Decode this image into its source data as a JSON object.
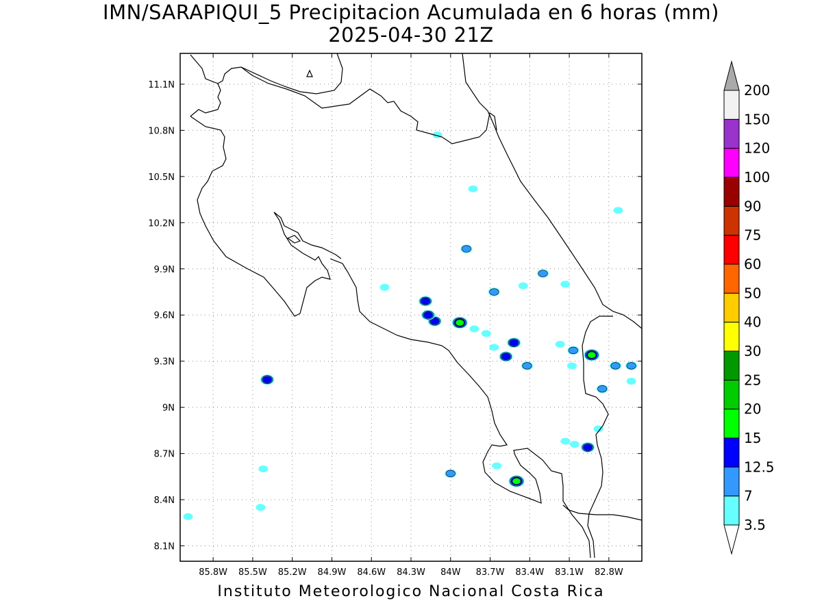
{
  "title": {
    "line1": "IMN/SARAPIQUI_5 Precipitacion Acumulada en 6 horas (mm)",
    "line2": "2025-04-30 21Z"
  },
  "credit": "Instituto Meteorologico Nacional Costa Rica",
  "map": {
    "lon_range": [
      -86.05,
      -82.55
    ],
    "lat_range": [
      8.0,
      11.3
    ],
    "lon_ticks": [
      "85.8W",
      "85.5W",
      "85.2W",
      "84.9W",
      "84.6W",
      "84.3W",
      "84W",
      "83.7W",
      "83.4W",
      "83.1W",
      "82.8W"
    ],
    "lat_ticks": [
      "8.1N",
      "8.4N",
      "8.7N",
      "9N",
      "9.3N",
      "9.6N",
      "9.9N",
      "10.2N",
      "10.5N",
      "10.8N",
      "11.1N"
    ],
    "grid": "dotted"
  },
  "colorbar": {
    "levels": [
      "3.5",
      "7",
      "12.5",
      "15",
      "20",
      "25",
      "30",
      "40",
      "50",
      "60",
      "75",
      "90",
      "100",
      "120",
      "150",
      "200"
    ],
    "colors": [
      "#66ffff",
      "#3399ff",
      "#0000ff",
      "#00ff00",
      "#00cc00",
      "#009900",
      "#ffff00",
      "#ffcc00",
      "#ff6600",
      "#ff0000",
      "#cc3300",
      "#990000",
      "#ff00ff",
      "#9933cc",
      "#f2f2f2",
      "#aaaaaa"
    ]
  },
  "precip_cells": [
    {
      "lon": -84.12,
      "lat": 9.56,
      "level": 2
    },
    {
      "lon": -83.93,
      "lat": 9.55,
      "level": 3
    },
    {
      "lon": -83.88,
      "lat": 10.03,
      "level": 1
    },
    {
      "lon": -84.19,
      "lat": 9.69,
      "level": 2
    },
    {
      "lon": -84.17,
      "lat": 9.6,
      "level": 2
    },
    {
      "lon": -83.3,
      "lat": 9.87,
      "level": 1
    },
    {
      "lon": -83.67,
      "lat": 9.75,
      "level": 1
    },
    {
      "lon": -83.52,
      "lat": 9.42,
      "level": 2
    },
    {
      "lon": -83.58,
      "lat": 9.33,
      "level": 2
    },
    {
      "lon": -82.93,
      "lat": 9.34,
      "level": 3
    },
    {
      "lon": -83.5,
      "lat": 8.52,
      "level": 3
    },
    {
      "lon": -82.96,
      "lat": 8.74,
      "level": 2
    },
    {
      "lon": -85.39,
      "lat": 9.18,
      "level": 2
    },
    {
      "lon": -84.5,
      "lat": 9.78,
      "level": 0
    },
    {
      "lon": -83.83,
      "lat": 10.42,
      "level": 0
    },
    {
      "lon": -82.73,
      "lat": 10.28,
      "level": 0
    },
    {
      "lon": -83.42,
      "lat": 9.27,
      "level": 1
    },
    {
      "lon": -82.75,
      "lat": 9.27,
      "level": 1
    },
    {
      "lon": -82.63,
      "lat": 9.27,
      "level": 1
    },
    {
      "lon": -82.85,
      "lat": 9.12,
      "level": 1
    },
    {
      "lon": -83.07,
      "lat": 9.37,
      "level": 1
    },
    {
      "lon": -84.0,
      "lat": 8.57,
      "level": 1
    },
    {
      "lon": -83.65,
      "lat": 8.62,
      "level": 0
    },
    {
      "lon": -85.42,
      "lat": 8.6,
      "level": 0
    },
    {
      "lon": -85.44,
      "lat": 8.35,
      "level": 0
    },
    {
      "lon": -83.13,
      "lat": 9.8,
      "level": 0
    },
    {
      "lon": -83.45,
      "lat": 9.79,
      "level": 0
    },
    {
      "lon": -83.08,
      "lat": 9.27,
      "level": 0
    },
    {
      "lon": -83.17,
      "lat": 9.41,
      "level": 0
    },
    {
      "lon": -83.73,
      "lat": 9.48,
      "level": 0
    },
    {
      "lon": -83.67,
      "lat": 9.39,
      "level": 0
    },
    {
      "lon": -83.82,
      "lat": 9.51,
      "level": 0
    },
    {
      "lon": -84.1,
      "lat": 10.77,
      "level": 0
    },
    {
      "lon": -85.99,
      "lat": 8.29,
      "level": 0
    },
    {
      "lon": -82.88,
      "lat": 8.86,
      "level": 0
    },
    {
      "lon": -83.06,
      "lat": 8.76,
      "level": 0
    },
    {
      "lon": -83.13,
      "lat": 8.78,
      "level": 0
    },
    {
      "lon": -82.63,
      "lat": 9.17,
      "level": 0
    }
  ]
}
